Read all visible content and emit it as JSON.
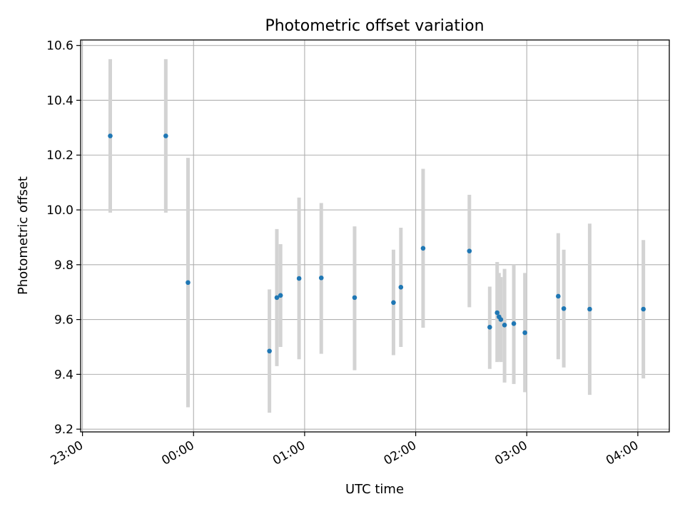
{
  "chart_data": {
    "type": "scatter",
    "title": "Photometric offset variation",
    "xlabel": "UTC time",
    "ylabel": "Photometric offset",
    "xlim": [
      "22:59",
      "04:17"
    ],
    "ylim": [
      9.19,
      10.62
    ],
    "x_ticks": [
      "23:00",
      "00:00",
      "01:00",
      "02:00",
      "03:00",
      "04:00"
    ],
    "y_ticks": [
      "9.2",
      "9.4",
      "9.6",
      "9.8",
      "10.0",
      "10.2",
      "10.4",
      "10.6"
    ],
    "grid": true,
    "colors": {
      "point": "#1f77b4",
      "errorbar": "#d3d3d3",
      "grid": "#b0b0b0"
    },
    "points": [
      {
        "x": "23:15",
        "y": 10.27,
        "ylow": 9.99,
        "yhigh": 10.55
      },
      {
        "x": "23:45",
        "y": 10.27,
        "ylow": 9.99,
        "yhigh": 10.55
      },
      {
        "x": "23:57",
        "y": 9.735,
        "ylow": 9.28,
        "yhigh": 10.19
      },
      {
        "x": "00:41",
        "y": 9.485,
        "ylow": 9.26,
        "yhigh": 9.71
      },
      {
        "x": "00:45",
        "y": 9.68,
        "ylow": 9.43,
        "yhigh": 9.93
      },
      {
        "x": "00:47",
        "y": 9.688,
        "ylow": 9.5,
        "yhigh": 9.875
      },
      {
        "x": "00:57",
        "y": 9.75,
        "ylow": 9.455,
        "yhigh": 10.045
      },
      {
        "x": "01:09",
        "y": 9.752,
        "ylow": 9.475,
        "yhigh": 10.025
      },
      {
        "x": "01:27",
        "y": 9.68,
        "ylow": 9.415,
        "yhigh": 9.94
      },
      {
        "x": "01:48",
        "y": 9.662,
        "ylow": 9.47,
        "yhigh": 9.855
      },
      {
        "x": "01:52",
        "y": 9.718,
        "ylow": 9.5,
        "yhigh": 9.935
      },
      {
        "x": "02:04",
        "y": 9.86,
        "ylow": 9.57,
        "yhigh": 10.15
      },
      {
        "x": "02:29",
        "y": 9.85,
        "ylow": 9.645,
        "yhigh": 10.055
      },
      {
        "x": "02:40",
        "y": 9.572,
        "ylow": 9.42,
        "yhigh": 9.72
      },
      {
        "x": "02:44",
        "y": 9.625,
        "ylow": 9.445,
        "yhigh": 9.81
      },
      {
        "x": "02:45",
        "y": 9.61,
        "ylow": 9.45,
        "yhigh": 9.77
      },
      {
        "x": "02:46",
        "y": 9.6,
        "ylow": 9.445,
        "yhigh": 9.755
      },
      {
        "x": "02:48",
        "y": 9.58,
        "ylow": 9.37,
        "yhigh": 9.785
      },
      {
        "x": "02:53",
        "y": 9.585,
        "ylow": 9.365,
        "yhigh": 9.8
      },
      {
        "x": "02:59",
        "y": 9.552,
        "ylow": 9.335,
        "yhigh": 9.77
      },
      {
        "x": "03:17",
        "y": 9.685,
        "ylow": 9.455,
        "yhigh": 9.915
      },
      {
        "x": "03:20",
        "y": 9.64,
        "ylow": 9.425,
        "yhigh": 9.855
      },
      {
        "x": "03:34",
        "y": 9.638,
        "ylow": 9.325,
        "yhigh": 9.95
      },
      {
        "x": "04:03",
        "y": 9.638,
        "ylow": 9.385,
        "yhigh": 9.89
      }
    ]
  }
}
